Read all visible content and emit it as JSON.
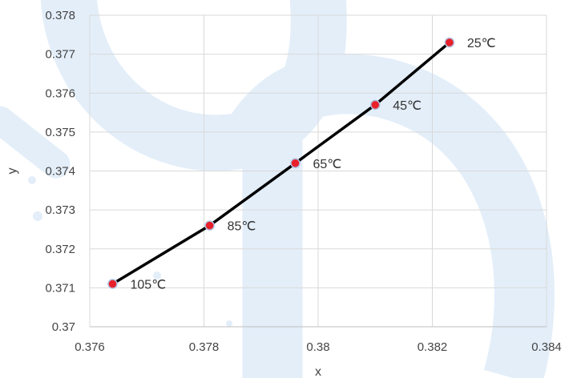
{
  "chart_data": {
    "type": "scatter",
    "title": "",
    "xlabel": "x",
    "ylabel": "y",
    "xlim": [
      0.376,
      0.384
    ],
    "ylim": [
      0.37,
      0.378
    ],
    "x_ticks": [
      "0.376",
      "0.378",
      "0.38",
      "0.382",
      "0.384"
    ],
    "y_ticks": [
      "0.37",
      "0.371",
      "0.372",
      "0.373",
      "0.374",
      "0.375",
      "0.376",
      "0.377",
      "0.378"
    ],
    "grid": true,
    "series": [
      {
        "points": [
          {
            "x": 0.3764,
            "y": 0.3711,
            "label": "105℃"
          },
          {
            "x": 0.3781,
            "y": 0.3726,
            "label": "85℃"
          },
          {
            "x": 0.3796,
            "y": 0.3742,
            "label": "65℃"
          },
          {
            "x": 0.381,
            "y": 0.3757,
            "label": "45℃"
          },
          {
            "x": 0.3823,
            "y": 0.3773,
            "label": "25℃"
          }
        ]
      }
    ],
    "colors": {
      "line": "#000000",
      "marker_fill": "#e8202a",
      "marker_ring": "#b0bedd",
      "grid": "#d9d9d9",
      "watermark": "#e3eef9"
    }
  }
}
